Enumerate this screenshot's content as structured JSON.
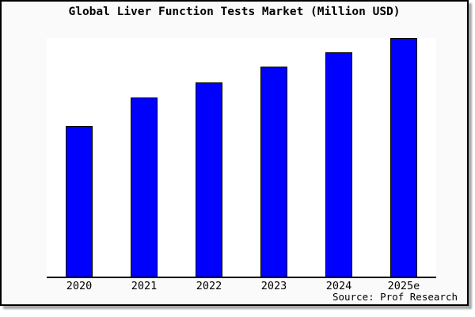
{
  "frame": {
    "background": "#fafafa",
    "border_color": "#000000",
    "shadow_color": "#a8a8a8"
  },
  "chart_data": {
    "type": "bar",
    "title": "Global Liver Function Tests Market (Million USD)",
    "categories": [
      "2020",
      "2021",
      "2022",
      "2023",
      "2024",
      "2025e"
    ],
    "values": [
      63,
      75,
      81.5,
      88,
      94,
      100
    ],
    "values_note": "No y-axis scale or data labels shown in the image; values are estimated bar heights as percent of the tallest bar (2025e = 100).",
    "xlabel": "",
    "ylabel": "",
    "ylim": [
      0,
      100
    ],
    "grid": false,
    "legend": false,
    "plot_background": "#ffffff",
    "bar_color": "#0000fe",
    "bar_edge_color": "#000000",
    "axis_color": "#000000",
    "source_text": "Source: Prof Research"
  }
}
